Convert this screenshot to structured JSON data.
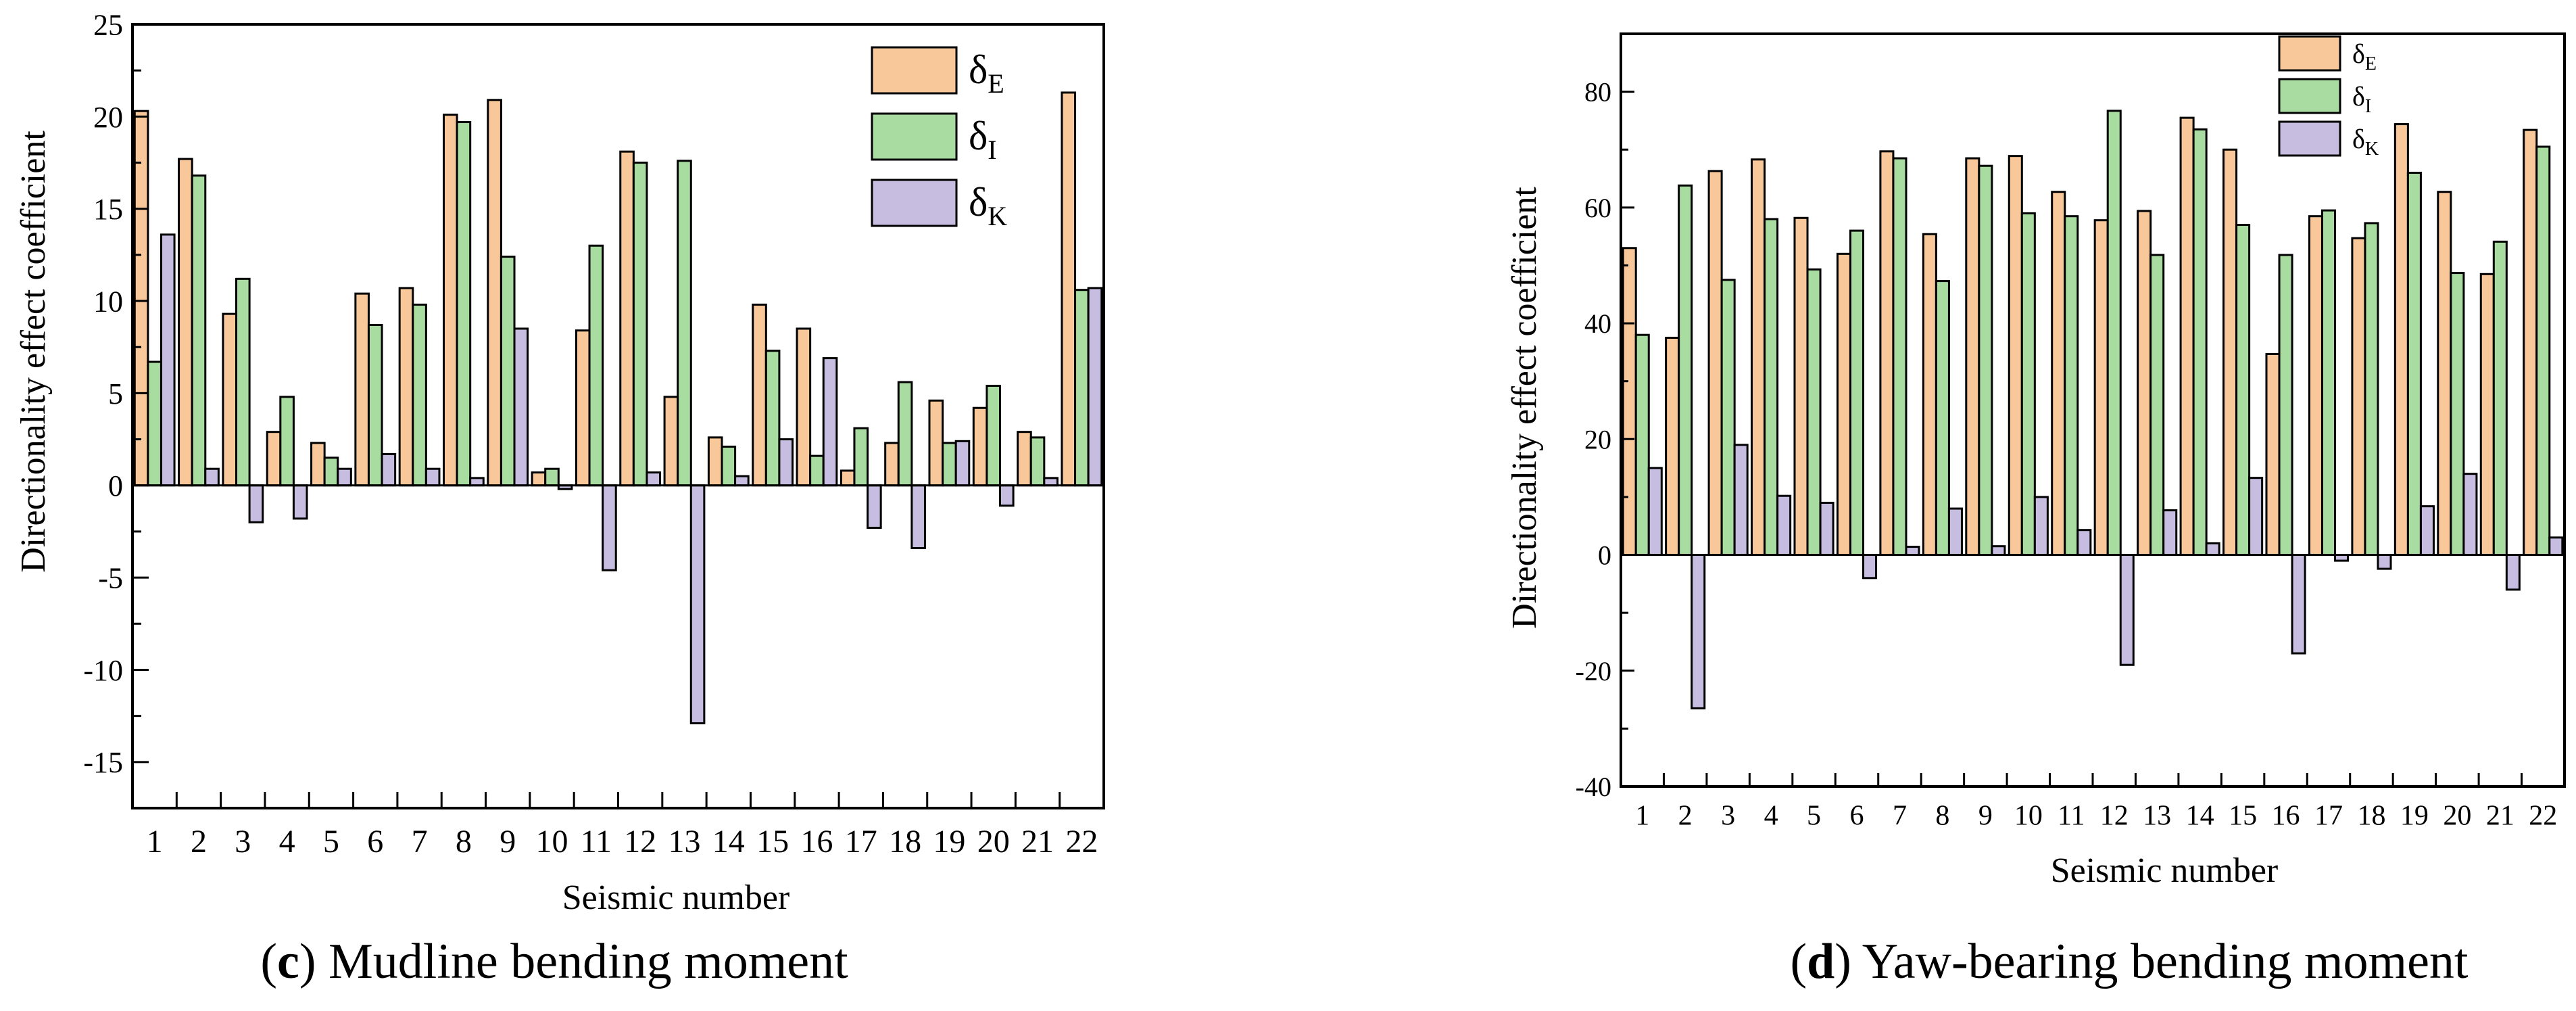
{
  "figure": {
    "background": "#ffffff"
  },
  "colors": {
    "E": "#f8c89a",
    "I": "#a8dca0",
    "K": "#c7bde0",
    "stroke": "#000000"
  },
  "chart_data": [
    {
      "type": "bar",
      "panel_letter": "c",
      "caption_text": " Mudline bending moment",
      "xlabel": "Seismic number",
      "ylabel": "Directionality effect coefficient",
      "ylim": [
        -17.5,
        25
      ],
      "yticks": [
        -15,
        -10,
        -5,
        0,
        5,
        10,
        15,
        20,
        25
      ],
      "categories": [
        "1",
        "2",
        "3",
        "4",
        "5",
        "6",
        "7",
        "8",
        "9",
        "10",
        "11",
        "12",
        "13",
        "14",
        "15",
        "16",
        "17",
        "18",
        "19",
        "20",
        "21",
        "22"
      ],
      "series": [
        {
          "key": "E",
          "name": "δ",
          "sub": "E",
          "values": [
            20.3,
            17.7,
            9.3,
            2.9,
            2.3,
            10.4,
            10.7,
            20.1,
            20.9,
            0.7,
            8.4,
            18.1,
            4.8,
            2.6,
            9.8,
            8.5,
            0.8,
            2.3,
            4.6,
            4.2,
            2.9,
            21.3
          ]
        },
        {
          "key": "I",
          "name": "δ",
          "sub": "I",
          "values": [
            6.7,
            16.8,
            11.2,
            4.8,
            1.5,
            8.7,
            9.8,
            19.7,
            12.4,
            0.9,
            13.0,
            17.5,
            17.6,
            2.1,
            7.3,
            1.6,
            3.1,
            5.6,
            2.3,
            5.4,
            2.6,
            10.6
          ]
        },
        {
          "key": "K",
          "name": "δ",
          "sub": "K",
          "values": [
            13.6,
            0.9,
            -2.0,
            -1.8,
            0.9,
            1.7,
            0.9,
            0.4,
            8.5,
            -0.2,
            -4.6,
            0.7,
            -12.9,
            0.5,
            2.5,
            6.9,
            -2.3,
            -3.4,
            2.4,
            -1.1,
            0.4,
            10.7
          ]
        }
      ],
      "legend_position": "top-right"
    },
    {
      "type": "bar",
      "panel_letter": "d",
      "caption_text": " Yaw-bearing bending moment",
      "xlabel": "Seismic number",
      "ylabel": "Directionality effect coefficient",
      "ylim": [
        -40,
        90
      ],
      "yticks": [
        -40,
        -20,
        0,
        20,
        40,
        60,
        80
      ],
      "categories": [
        "1",
        "2",
        "3",
        "4",
        "5",
        "6",
        "7",
        "8",
        "9",
        "10",
        "11",
        "12",
        "13",
        "14",
        "15",
        "16",
        "17",
        "18",
        "19",
        "20",
        "21",
        "22"
      ],
      "series": [
        {
          "key": "E",
          "name": "δ",
          "sub": "E",
          "values": [
            53,
            37.5,
            66.3,
            68.3,
            58.2,
            52,
            69.7,
            55.4,
            68.5,
            68.9,
            62.7,
            57.8,
            59.4,
            75.5,
            70,
            34.7,
            58.5,
            54.7,
            74.4,
            62.7,
            48.5,
            73.4
          ]
        },
        {
          "key": "I",
          "name": "δ",
          "sub": "I",
          "values": [
            38,
            63.8,
            47.5,
            58,
            49.3,
            56,
            68.5,
            47.3,
            67.2,
            59,
            58.5,
            76.7,
            51.8,
            73.5,
            57,
            51.8,
            59.5,
            57.3,
            66,
            48.7,
            54.1,
            70.5
          ]
        },
        {
          "key": "K",
          "name": "δ",
          "sub": "K",
          "values": [
            15,
            -26.5,
            19,
            10.2,
            9,
            -4,
            1.4,
            8,
            1.5,
            10,
            4.3,
            -19,
            7.7,
            2,
            13.3,
            -17,
            -1,
            -2.4,
            8.4,
            14,
            -6,
            3
          ]
        }
      ],
      "legend_position": "top-center"
    }
  ]
}
